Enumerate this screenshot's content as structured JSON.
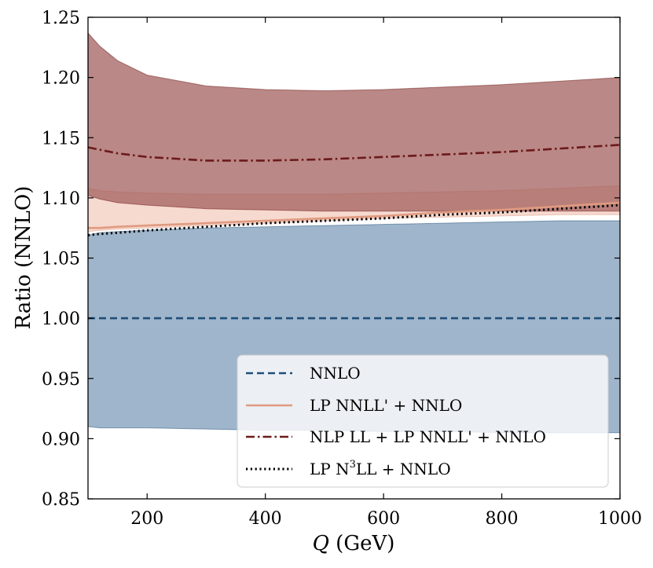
{
  "chart_data": {
    "type": "line",
    "xlabel_var": "Q",
    "xlabel_unit": " (GeV)",
    "ylabel": "Ratio (NNLO)",
    "xlim": [
      100,
      1000
    ],
    "ylim": [
      0.85,
      1.25
    ],
    "xticks": [
      200,
      400,
      600,
      800,
      1000
    ],
    "xtick_labels": [
      "200",
      "400",
      "600",
      "800",
      "1000"
    ],
    "yticks": [
      0.85,
      0.9,
      0.95,
      1.0,
      1.05,
      1.1,
      1.15,
      1.2,
      1.25
    ],
    "ytick_labels": [
      "0.85",
      "0.90",
      "0.95",
      "1.00",
      "1.05",
      "1.10",
      "1.15",
      "1.20",
      "1.25"
    ],
    "x": [
      100,
      120,
      150,
      200,
      300,
      400,
      500,
      600,
      700,
      800,
      900,
      1000
    ],
    "series": [
      {
        "name": "NNLO",
        "color": "#1f4e79",
        "dash": "dashed",
        "band_color": "#9fb5cb",
        "center": [
          1.0,
          1.0,
          1.0,
          1.0,
          1.0,
          1.0,
          1.0,
          1.0,
          1.0,
          1.0,
          1.0,
          1.0
        ],
        "upper": [
          1.069,
          1.071,
          1.072,
          1.073,
          1.075,
          1.076,
          1.077,
          1.078,
          1.079,
          1.08,
          1.081,
          1.081
        ],
        "lower": [
          0.91,
          0.909,
          0.909,
          0.909,
          0.908,
          0.907,
          0.907,
          0.906,
          0.906,
          0.905,
          0.905,
          0.905
        ]
      },
      {
        "name": "LP NNLL' + NNLO",
        "color": "#e09a80",
        "dash": "solid",
        "band_color": "#f2cabd",
        "center": [
          1.075,
          1.075,
          1.076,
          1.077,
          1.079,
          1.081,
          1.083,
          1.085,
          1.088,
          1.09,
          1.093,
          1.096
        ],
        "upper": [
          1.108,
          1.106,
          1.105,
          1.104,
          1.103,
          1.103,
          1.103,
          1.104,
          1.105,
          1.106,
          1.108,
          1.11
        ],
        "lower": [
          1.072,
          1.073,
          1.074,
          1.075,
          1.077,
          1.079,
          1.081,
          1.083,
          1.084,
          1.085,
          1.086,
          1.086
        ]
      },
      {
        "name": "NLP LL + LP NNLL' + NNLO",
        "color": "#6b1a1a",
        "dash": "dashdot",
        "band_color": "#a05a58",
        "center": [
          1.142,
          1.14,
          1.137,
          1.134,
          1.131,
          1.131,
          1.132,
          1.134,
          1.136,
          1.138,
          1.141,
          1.144
        ],
        "upper": [
          1.237,
          1.226,
          1.214,
          1.202,
          1.193,
          1.19,
          1.189,
          1.19,
          1.192,
          1.194,
          1.197,
          1.2
        ],
        "lower": [
          1.102,
          1.099,
          1.096,
          1.094,
          1.091,
          1.09,
          1.089,
          1.089,
          1.089,
          1.089,
          1.089,
          1.089
        ]
      },
      {
        "name": "LP N3LL + NNLO",
        "color": "#000000",
        "dash": "dotted",
        "center": [
          1.069,
          1.07,
          1.071,
          1.073,
          1.076,
          1.079,
          1.081,
          1.083,
          1.086,
          1.088,
          1.091,
          1.094
        ]
      }
    ],
    "legend": {
      "position": "lower-right",
      "entries": [
        {
          "text": "NNLO"
        },
        {
          "text": "LP NNLL' + NNLO"
        },
        {
          "text": "NLP LL + LP NNLL' + NNLO"
        },
        {
          "pre": "LP N",
          "sup": "3",
          "post": "LL + NNLO"
        }
      ]
    }
  }
}
